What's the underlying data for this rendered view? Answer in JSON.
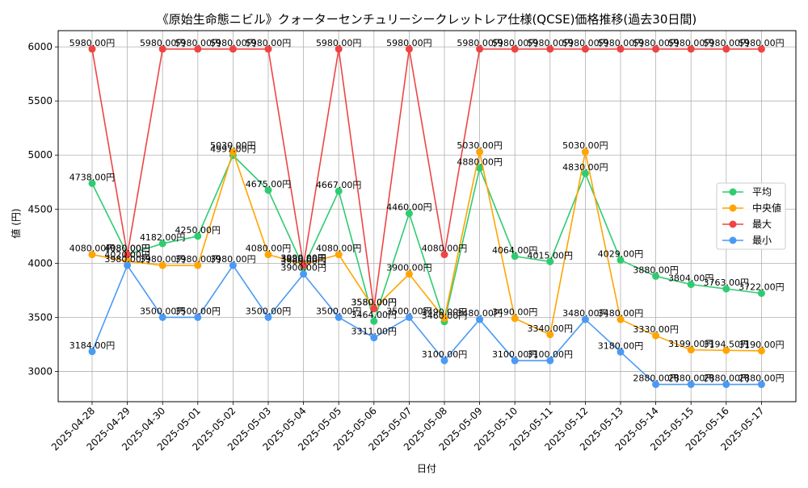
{
  "chart_data": {
    "type": "line",
    "title": "《原始生命態ニビル》クォーターセンチュリーシークレットレア仕様(QCSE)価格推移(過去30日間)",
    "xlabel": "日付",
    "ylabel": "値 (円)",
    "categories": [
      "2025-04-28",
      "2025-04-29",
      "2025-04-30",
      "2025-05-01",
      "2025-05-02",
      "2025-05-03",
      "2025-05-04",
      "2025-05-05",
      "2025-05-06",
      "2025-05-07",
      "2025-05-08",
      "2025-05-09",
      "2025-05-10",
      "2025-05-11",
      "2025-05-12",
      "2025-05-13",
      "2025-05-14",
      "2025-05-15",
      "2025-05-16",
      "2025-05-17"
    ],
    "yticks": [
      3000,
      3500,
      4000,
      4500,
      5000,
      5500,
      6000
    ],
    "ylim": [
      2720,
      6150
    ],
    "grid": true,
    "legend_position": "right",
    "value_suffix": "円",
    "series": [
      {
        "name": "平均",
        "color": "#2ecc71",
        "values": [
          4738,
          4080,
          4182,
          4250,
          4997,
          4675,
          3960,
          4667,
          3464,
          4460,
          3460,
          4880,
          4064,
          4015,
          4830,
          4029,
          3880,
          3804,
          3763,
          3722
        ]
      },
      {
        "name": "中央値",
        "color": "#ffa500",
        "values": [
          4080,
          4020,
          3980,
          3980,
          5030,
          4080,
          3990,
          4080,
          3580,
          3900,
          3490,
          5030,
          3490,
          3340,
          5030,
          3480,
          3330,
          3199,
          3194.5,
          3190
        ]
      },
      {
        "name": "最大",
        "color": "#ef4444",
        "values": [
          5980,
          4080,
          5980,
          5980,
          5980,
          5980,
          3980,
          5980,
          3580,
          5980,
          4080,
          5980,
          5980,
          5980,
          5980,
          5980,
          5980,
          5980,
          5980,
          5980
        ]
      },
      {
        "name": "最小",
        "color": "#4a9af5",
        "values": [
          3184,
          3980,
          3500,
          3500,
          3980,
          3500,
          3900,
          3500,
          3311,
          3500,
          3100,
          3480,
          3100,
          3100,
          3480,
          3180,
          2880,
          2880,
          2880,
          2880
        ]
      }
    ]
  }
}
